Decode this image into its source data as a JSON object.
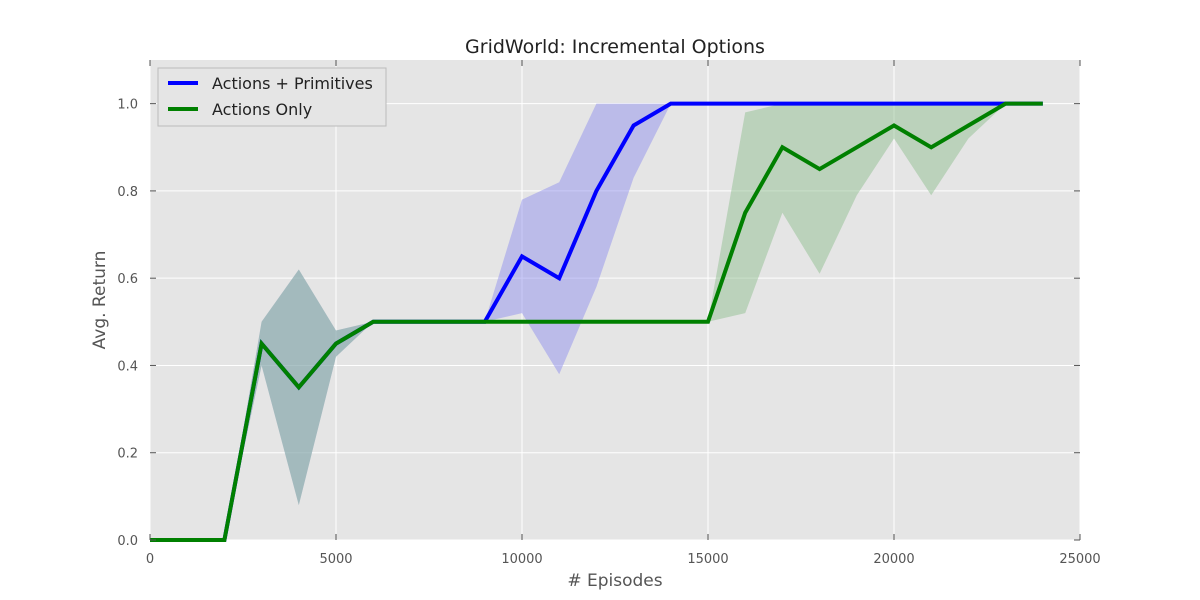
{
  "chart_data": {
    "type": "line",
    "title": "GridWorld: Incremental Options",
    "xlabel": "# Episodes",
    "ylabel": "Avg. Return",
    "xlim": [
      0,
      25000
    ],
    "ylim": [
      0,
      1.1
    ],
    "xticks": [
      0,
      5000,
      10000,
      15000,
      20000,
      25000
    ],
    "yticks": [
      0.0,
      0.2,
      0.4,
      0.6,
      0.8,
      1.0
    ],
    "xtick_labels": [
      "0",
      "5000",
      "10000",
      "15000",
      "20000",
      "25000"
    ],
    "ytick_labels": [
      "0.0",
      "0.2",
      "0.4",
      "0.6",
      "0.8",
      "1.0"
    ],
    "grid": true,
    "legend_position": "top-left",
    "series": [
      {
        "name": "Actions + Primitives",
        "color": "#0000ff",
        "band_color": "#8888ee",
        "x": [
          0,
          1000,
          2000,
          3000,
          4000,
          5000,
          6000,
          7000,
          8000,
          9000,
          10000,
          11000,
          12000,
          13000,
          14000,
          15000,
          16000,
          17000,
          18000,
          19000,
          20000,
          21000,
          22000,
          23000,
          24000
        ],
        "y": [
          0.0,
          0.0,
          0.0,
          0.45,
          0.35,
          0.45,
          0.5,
          0.5,
          0.5,
          0.5,
          0.65,
          0.6,
          0.8,
          0.95,
          1.0,
          1.0,
          1.0,
          1.0,
          1.0,
          1.0,
          1.0,
          1.0,
          1.0,
          1.0,
          1.0
        ],
        "upper": [
          0.0,
          0.0,
          0.0,
          0.5,
          0.62,
          0.48,
          0.5,
          0.5,
          0.5,
          0.5,
          0.78,
          0.82,
          1.0,
          1.0,
          1.0,
          1.0,
          1.0,
          1.0,
          1.0,
          1.0,
          1.0,
          1.0,
          1.0,
          1.0,
          1.0
        ],
        "lower": [
          0.0,
          0.0,
          0.0,
          0.4,
          0.08,
          0.42,
          0.5,
          0.5,
          0.5,
          0.5,
          0.52,
          0.38,
          0.58,
          0.83,
          1.0,
          1.0,
          1.0,
          1.0,
          1.0,
          1.0,
          1.0,
          1.0,
          1.0,
          1.0,
          1.0
        ]
      },
      {
        "name": "Actions Only",
        "color": "#008000",
        "band_color": "#88bb88",
        "x": [
          0,
          1000,
          2000,
          3000,
          4000,
          5000,
          6000,
          7000,
          8000,
          9000,
          10000,
          11000,
          12000,
          13000,
          14000,
          15000,
          16000,
          17000,
          18000,
          19000,
          20000,
          21000,
          22000,
          23000,
          24000
        ],
        "y": [
          0.0,
          0.0,
          0.0,
          0.45,
          0.35,
          0.45,
          0.5,
          0.5,
          0.5,
          0.5,
          0.5,
          0.5,
          0.5,
          0.5,
          0.5,
          0.5,
          0.75,
          0.9,
          0.85,
          0.9,
          0.95,
          0.9,
          0.95,
          1.0,
          1.0
        ],
        "upper": [
          0.0,
          0.0,
          0.0,
          0.5,
          0.62,
          0.48,
          0.5,
          0.5,
          0.5,
          0.5,
          0.5,
          0.5,
          0.5,
          0.5,
          0.5,
          0.5,
          0.98,
          1.0,
          1.0,
          1.0,
          1.0,
          1.0,
          1.0,
          1.0,
          1.0
        ],
        "lower": [
          0.0,
          0.0,
          0.0,
          0.4,
          0.08,
          0.42,
          0.5,
          0.5,
          0.5,
          0.5,
          0.5,
          0.5,
          0.5,
          0.5,
          0.5,
          0.5,
          0.52,
          0.75,
          0.61,
          0.79,
          0.92,
          0.79,
          0.92,
          1.0,
          1.0
        ]
      }
    ]
  }
}
